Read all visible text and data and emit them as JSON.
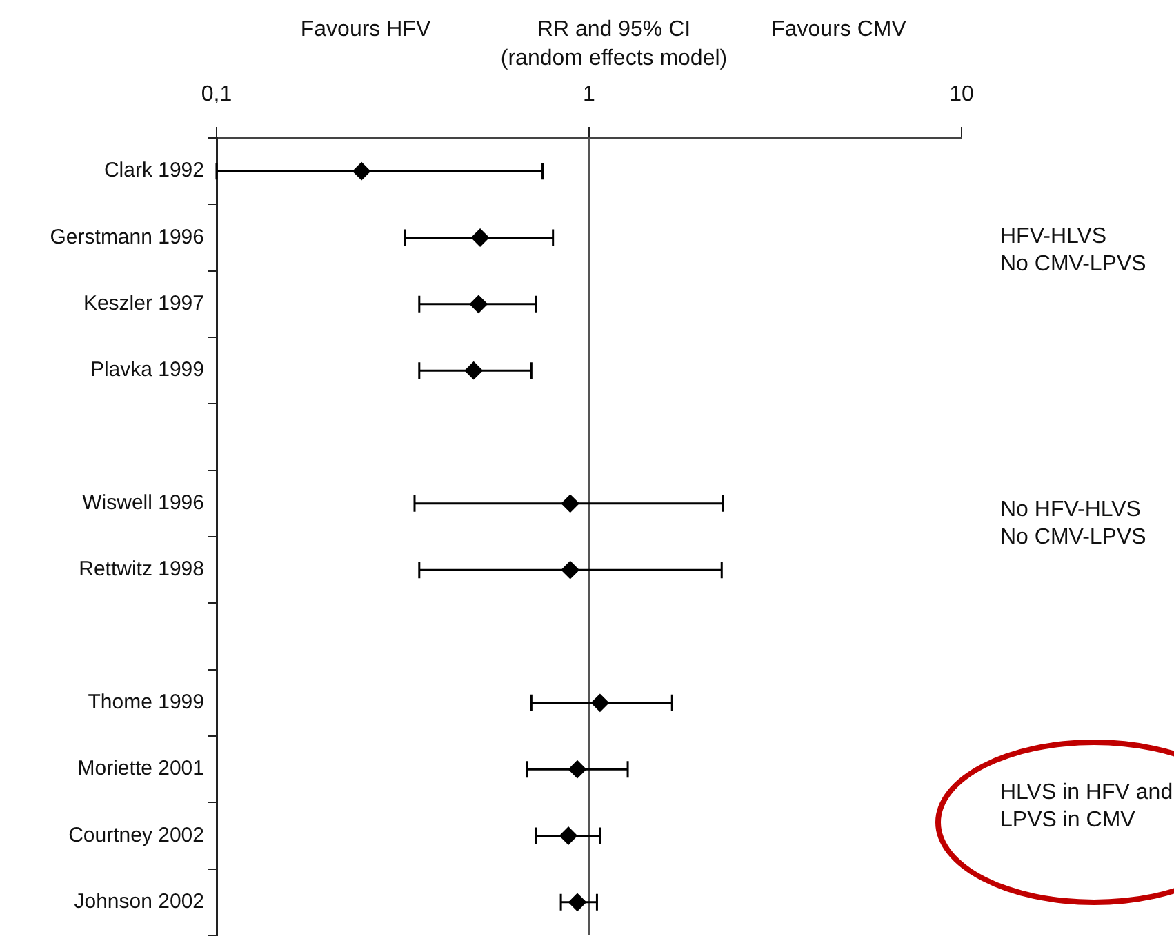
{
  "chart_data": {
    "type": "scatter",
    "title": "RR and 95% CI",
    "subtitle": "(random effects model)",
    "categories": [
      "Clark 1992",
      "Gerstmann 1996",
      "Keszler 1997",
      "Plavka 1999",
      null,
      "Wiswell 1996",
      "Rettwitz 1998",
      null,
      "Thome 1999",
      "Moriette 2001",
      "Courtney 2002",
      "Johnson 2002"
    ],
    "series": [
      {
        "color": "#000000",
        "values": [
          0.245,
          0.51,
          0.505,
          0.49,
          null,
          0.89,
          0.89,
          null,
          1.07,
          0.93,
          0.88,
          0.93
        ],
        "errors": [
          [
            0.1,
            0.75
          ],
          [
            0.32,
            0.8
          ],
          [
            0.35,
            0.72
          ],
          [
            0.35,
            0.7
          ],
          null,
          [
            0.34,
            2.29
          ],
          [
            0.35,
            2.27
          ],
          null,
          [
            0.7,
            1.67
          ],
          [
            0.68,
            1.27
          ],
          [
            0.72,
            1.07
          ],
          [
            0.84,
            1.05
          ]
        ]
      }
    ],
    "orientation": "horizontal",
    "log": "x",
    "xlim": [
      0.1,
      10
    ],
    "xticks": [
      {
        "value": 0.1,
        "label": "0,1"
      },
      1,
      10
    ],
    "ref_lines": [
      {
        "axis": "x",
        "value": 1,
        "color": "#555555"
      }
    ],
    "marker": "diamond",
    "grid": false,
    "legend": false,
    "annotations": [
      "Favours HFV",
      "Favours CMV",
      "HFV-HLVS\nNo CMV-LPVS",
      "No HFV-HLVS\nNo CMV-LPVS",
      "HLVS in HFV and\nLPVS in CMV"
    ]
  }
}
